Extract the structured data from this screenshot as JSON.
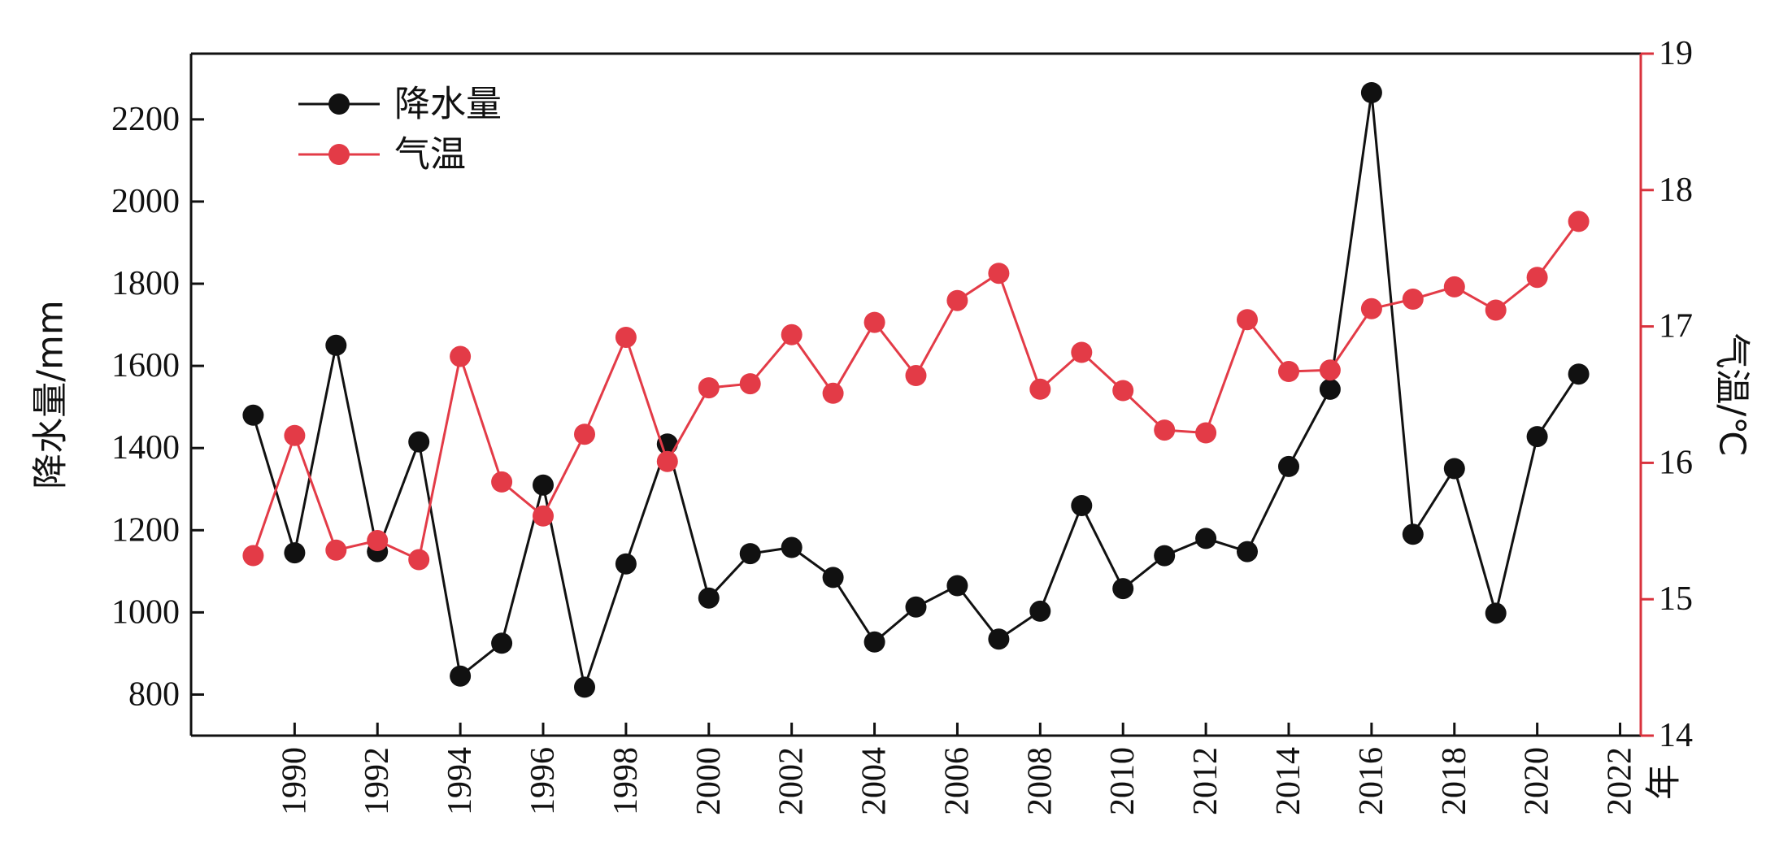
{
  "chart_data": {
    "type": "line",
    "x": [
      1989,
      1990,
      1991,
      1992,
      1993,
      1994,
      1995,
      1996,
      1997,
      1998,
      1999,
      2000,
      2001,
      2002,
      2003,
      2004,
      2005,
      2006,
      2007,
      2008,
      2009,
      2010,
      2011,
      2012,
      2013,
      2014,
      2015,
      2016,
      2017,
      2018,
      2019,
      2020,
      2021
    ],
    "xlim": [
      1987.5,
      2022.5
    ],
    "xticks": [
      "1990",
      "1992",
      "1994",
      "1996",
      "1998",
      "2000",
      "2002",
      "2004",
      "2006",
      "2008",
      "2010",
      "2012",
      "2014",
      "2016",
      "2018",
      "2020",
      "2022"
    ],
    "xlabel": "年",
    "y_left": {
      "label": "降水量/mm",
      "lim": [
        700,
        2360
      ],
      "ticks": [
        "800",
        "1000",
        "1200",
        "1400",
        "1600",
        "1800",
        "2000",
        "2200"
      ],
      "color": "#000000"
    },
    "y_right": {
      "label": "气温/℃",
      "lim": [
        14,
        19
      ],
      "ticks": [
        "14",
        "15",
        "16",
        "17",
        "18",
        "19"
      ],
      "color": "#d9323c"
    },
    "series": [
      {
        "name": "降水量",
        "axis": "left",
        "color": "#111111",
        "values": [
          1480,
          1145,
          1650,
          1148,
          1415,
          845,
          925,
          1310,
          818,
          1118,
          1410,
          1035,
          1143,
          1158,
          1085,
          928,
          1013,
          1065,
          935,
          1003,
          1260,
          1058,
          1138,
          1180,
          1148,
          1355,
          1543,
          2265,
          1190,
          1350,
          998,
          1428,
          1580
        ]
      },
      {
        "name": "气温",
        "axis": "right",
        "color": "#e33b47",
        "values": [
          15.32,
          16.2,
          15.36,
          15.43,
          15.29,
          16.78,
          15.86,
          15.61,
          16.21,
          16.92,
          16.01,
          16.55,
          16.58,
          16.94,
          16.51,
          17.03,
          16.64,
          17.19,
          17.39,
          16.54,
          16.81,
          16.53,
          16.24,
          16.22,
          17.05,
          16.67,
          16.68,
          17.13,
          17.2,
          17.29,
          17.12,
          17.36,
          17.77
        ]
      }
    ],
    "legend": {
      "position": "top-left",
      "items": [
        "降水量",
        "气温"
      ]
    },
    "grid": false
  }
}
